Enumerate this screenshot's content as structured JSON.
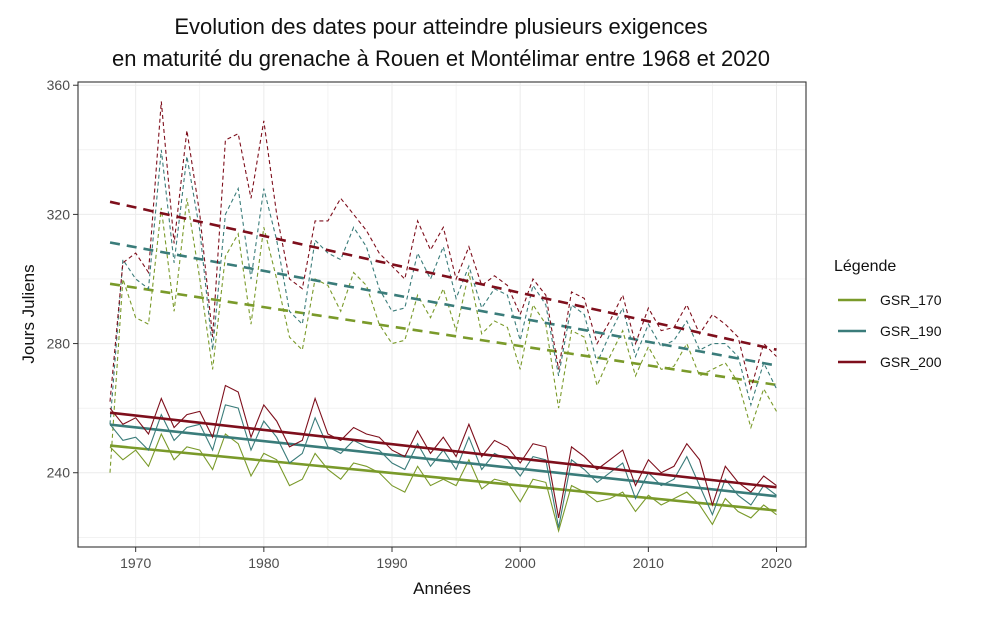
{
  "chart_data": {
    "type": "line",
    "title": "Evolution des dates pour atteindre plusieurs exigences",
    "subtitle": "en maturité du grenache à Rouen et Montélimar entre 1968 et 2020",
    "xlabel": "Années",
    "ylabel": "Jours Juliens",
    "xlim": [
      1965.5,
      2022.3
    ],
    "ylim": [
      217,
      361
    ],
    "xticks": [
      1970,
      1980,
      1990,
      2000,
      2010,
      2020
    ],
    "yticks": [
      240,
      280,
      320,
      360
    ],
    "grid": true,
    "legend": {
      "title": "Légende",
      "position": "right"
    },
    "x": [
      1968,
      1969,
      1970,
      1971,
      1972,
      1973,
      1974,
      1975,
      1976,
      1977,
      1978,
      1979,
      1980,
      1981,
      1982,
      1983,
      1984,
      1985,
      1986,
      1987,
      1988,
      1989,
      1990,
      1991,
      1992,
      1993,
      1994,
      1995,
      1996,
      1997,
      1998,
      1999,
      2000,
      2001,
      2002,
      2003,
      2004,
      2005,
      2006,
      2007,
      2008,
      2009,
      2010,
      2011,
      2012,
      2013,
      2014,
      2015,
      2016,
      2017,
      2018,
      2019,
      2020
    ],
    "series": [
      {
        "name": "GSR_170",
        "color": "#7a9a2a",
        "station_a": [
          248,
          244,
          247,
          242,
          252,
          244,
          248,
          247,
          241,
          252,
          249,
          239,
          246,
          244,
          236,
          238,
          246,
          241,
          238,
          243,
          242,
          240,
          236,
          234,
          242,
          236,
          238,
          236,
          244,
          235,
          238,
          237,
          231,
          238,
          237,
          222,
          236,
          234,
          231,
          232,
          234,
          228,
          233,
          230,
          232,
          234,
          230,
          224,
          232,
          228,
          226,
          230,
          227
        ],
        "station_b": [
          240,
          300,
          288,
          286,
          322,
          290,
          325,
          300,
          272,
          307,
          314,
          286,
          316,
          300,
          282,
          278,
          300,
          298,
          290,
          302,
          298,
          286,
          280,
          281,
          295,
          288,
          297,
          284,
          302,
          283,
          287,
          285,
          272,
          292,
          286,
          260,
          284,
          282,
          267,
          276,
          284,
          270,
          279,
          272,
          273,
          280,
          270,
          272,
          274,
          268,
          254,
          266,
          259
        ],
        "trend_a": [
          248.4,
          228.3
        ],
        "trend_b": [
          298.5,
          267.2
        ]
      },
      {
        "name": "GSR_190",
        "color": "#3a7c7a",
        "station_a": [
          255,
          250,
          251,
          247,
          258,
          250,
          254,
          255,
          247,
          261,
          260,
          247,
          256,
          251,
          243,
          246,
          257,
          248,
          246,
          250,
          248,
          247,
          243,
          241,
          249,
          242,
          247,
          241,
          251,
          241,
          246,
          244,
          239,
          245,
          244,
          223,
          244,
          241,
          237,
          240,
          243,
          232,
          240,
          236,
          238,
          245,
          236,
          227,
          238,
          233,
          230,
          236,
          233
        ],
        "station_b": [
          255,
          306,
          300,
          297,
          340,
          305,
          338,
          315,
          278,
          320,
          328,
          300,
          328,
          312,
          290,
          286,
          312,
          308,
          306,
          316,
          310,
          297,
          290,
          291,
          308,
          300,
          310,
          294,
          304,
          291,
          297,
          295,
          281,
          298,
          292,
          270,
          292,
          289,
          274,
          283,
          291,
          276,
          286,
          279,
          281,
          287,
          278,
          280,
          280,
          276,
          261,
          274,
          266
        ],
        "trend_a": [
          254.9,
          232.7
        ],
        "trend_b": [
          311.3,
          273.2
        ]
      },
      {
        "name": "GSR_200",
        "color": "#7e0f1c",
        "station_a": [
          260,
          255,
          257,
          252,
          263,
          254,
          258,
          259,
          251,
          267,
          265,
          251,
          261,
          256,
          248,
          250,
          263,
          252,
          250,
          254,
          252,
          251,
          247,
          245,
          253,
          246,
          251,
          245,
          255,
          245,
          250,
          248,
          243,
          249,
          248,
          226,
          248,
          245,
          241,
          244,
          247,
          236,
          244,
          240,
          242,
          249,
          244,
          230,
          242,
          237,
          234,
          239,
          236
        ],
        "station_b": [
          262,
          305,
          308,
          302,
          355,
          311,
          346,
          320,
          282,
          343,
          345,
          325,
          349,
          320,
          300,
          297,
          318,
          318,
          325,
          320,
          315,
          308,
          304,
          300,
          318,
          309,
          316,
          300,
          310,
          298,
          301,
          298,
          289,
          300,
          295,
          272,
          296,
          294,
          280,
          287,
          295,
          280,
          291,
          284,
          285,
          292,
          283,
          289,
          286,
          282,
          266,
          280,
          276
        ],
        "trend_a": [
          258.6,
          235.5
        ],
        "trend_b": [
          323.9,
          278.1
        ]
      }
    ]
  }
}
